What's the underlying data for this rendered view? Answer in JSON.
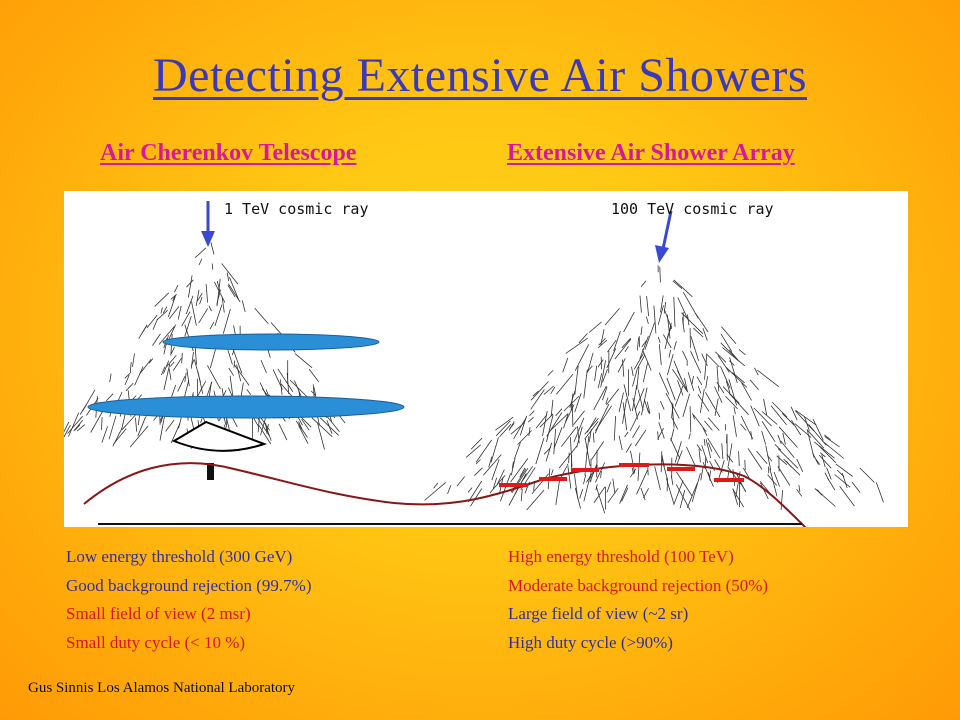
{
  "slide": {
    "title": "Detecting Extensive Air Showers",
    "left_heading": "Air Cherenkov Telescope",
    "right_heading": "Extensive Air Shower Array",
    "figure": {
      "left_label": "1 TeV cosmic ray",
      "right_label": "100 TeV cosmic ray"
    },
    "left_list": [
      "Low energy threshold (300 GeV)",
      "Good background rejection (99.7%)",
      "Small field of view (2 msr)",
      "Small duty cycle (< 10 %)"
    ],
    "right_list": [
      "High energy threshold (100 TeV)",
      "Moderate  background rejection (50%)",
      "Large field of view (~2 sr)",
      "High duty cycle (>90%)"
    ],
    "footer": "Gus Sinnis Los Alamos National Laboratory"
  },
  "colors": {
    "title": "#3a3ab8",
    "headings": "#d8189a",
    "good_text": "#2f2f9c",
    "bad_text": "#d81428",
    "arrow": "#3a4ad0",
    "light_pool": "#2a8fd6",
    "ground": "#8a1616",
    "detectors": "#e01818"
  }
}
